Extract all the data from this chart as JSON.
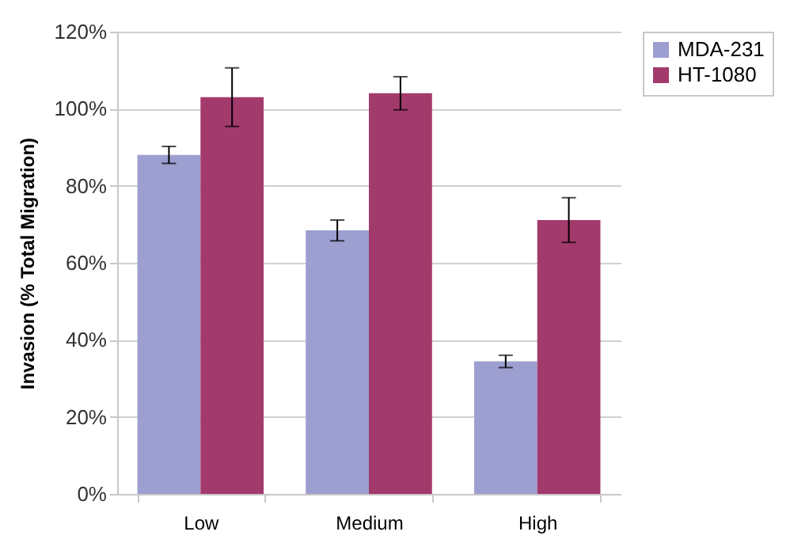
{
  "chart_data": {
    "type": "bar",
    "ylabel": "Invasion (% Total Migration)",
    "categories": [
      "Low",
      "Medium",
      "High"
    ],
    "series": [
      {
        "name": "MDA-231",
        "color": "#9c9fd0",
        "values": [
          88,
          68.4,
          34.4
        ],
        "errors": [
          2.2,
          2.7,
          1.6
        ]
      },
      {
        "name": "HT-1080",
        "color": "#a33a6c",
        "values": [
          103,
          104,
          71.1
        ],
        "errors": [
          7.6,
          4.3,
          5.8
        ]
      }
    ],
    "ylim": [
      0,
      120
    ],
    "yticks": [
      {
        "value": 0,
        "label": "0%"
      },
      {
        "value": 20,
        "label": "20%"
      },
      {
        "value": 40,
        "label": "40%"
      },
      {
        "value": 60,
        "label": "60%"
      },
      {
        "value": 80,
        "label": "80%"
      },
      {
        "value": 100,
        "label": "100%"
      },
      {
        "value": 120,
        "label": "120%"
      }
    ],
    "grid": "y",
    "legend": "right"
  }
}
